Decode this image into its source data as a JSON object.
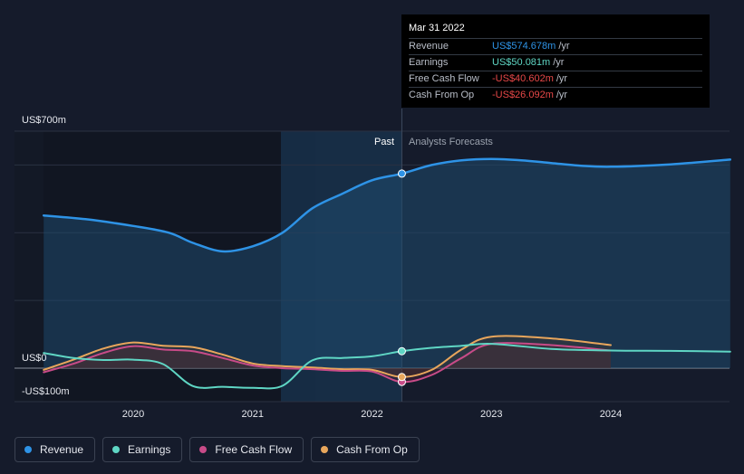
{
  "chart_data": {
    "type": "line",
    "y_axis": {
      "top_label": "US$700m",
      "zero_label": "US$0",
      "bottom_label": "-US$100m",
      "ylim": [
        -100,
        700
      ]
    },
    "x_ticks": [
      "2020",
      "2021",
      "2022",
      "2023",
      "2024"
    ],
    "sections": {
      "past_label": "Past",
      "forecast_label": "Analysts Forecasts"
    },
    "series": [
      {
        "name": "Revenue",
        "key": "revenue",
        "color": "#2e93e6",
        "area": true,
        "points": [
          [
            2019.25,
            451
          ],
          [
            2019.6,
            440
          ],
          [
            2020.0,
            420
          ],
          [
            2020.3,
            400
          ],
          [
            2020.5,
            370
          ],
          [
            2020.75,
            345
          ],
          [
            2021.0,
            360
          ],
          [
            2021.25,
            400
          ],
          [
            2021.5,
            472
          ],
          [
            2021.75,
            515
          ],
          [
            2022.0,
            555
          ],
          [
            2022.25,
            574.678
          ],
          [
            2022.5,
            600
          ],
          [
            2022.75,
            614
          ],
          [
            2023.0,
            618
          ],
          [
            2023.25,
            614
          ],
          [
            2023.5,
            606
          ],
          [
            2023.75,
            598
          ],
          [
            2024.0,
            595
          ],
          [
            2024.5,
            602
          ],
          [
            2025.0,
            616
          ]
        ]
      },
      {
        "name": "Earnings",
        "key": "earnings",
        "color": "#5fd6c4",
        "area": false,
        "points": [
          [
            2019.25,
            45
          ],
          [
            2019.5,
            30
          ],
          [
            2019.75,
            24
          ],
          [
            2020.0,
            25
          ],
          [
            2020.25,
            12
          ],
          [
            2020.5,
            -53
          ],
          [
            2020.75,
            -55
          ],
          [
            2021.0,
            -58
          ],
          [
            2021.25,
            -52
          ],
          [
            2021.5,
            23
          ],
          [
            2021.75,
            30
          ],
          [
            2022.0,
            35
          ],
          [
            2022.25,
            50.081
          ],
          [
            2022.5,
            60
          ],
          [
            2022.75,
            66
          ],
          [
            2023.0,
            72
          ],
          [
            2023.5,
            57
          ],
          [
            2024.0,
            52
          ],
          [
            2024.5,
            51
          ],
          [
            2025.0,
            49
          ]
        ]
      },
      {
        "name": "Free Cash Flow",
        "key": "fcf",
        "color": "#c84b88",
        "area": false,
        "points": [
          [
            2019.25,
            -12
          ],
          [
            2019.5,
            13
          ],
          [
            2019.75,
            45
          ],
          [
            2020.0,
            65
          ],
          [
            2020.25,
            55
          ],
          [
            2020.5,
            50
          ],
          [
            2020.75,
            30
          ],
          [
            2021.0,
            8
          ],
          [
            2021.25,
            0
          ],
          [
            2021.5,
            -3
          ],
          [
            2021.75,
            -8
          ],
          [
            2022.0,
            -10
          ],
          [
            2022.25,
            -40.602
          ],
          [
            2022.5,
            -20
          ],
          [
            2022.75,
            30
          ],
          [
            2023.0,
            72
          ],
          [
            2023.5,
            68
          ],
          [
            2024.0,
            52
          ]
        ]
      },
      {
        "name": "Cash From Op",
        "key": "cfo",
        "color": "#e8a65c",
        "area": false,
        "points": [
          [
            2019.25,
            -5
          ],
          [
            2019.5,
            25
          ],
          [
            2019.75,
            58
          ],
          [
            2020.0,
            76
          ],
          [
            2020.25,
            66
          ],
          [
            2020.5,
            62
          ],
          [
            2020.75,
            40
          ],
          [
            2021.0,
            14
          ],
          [
            2021.25,
            6
          ],
          [
            2021.5,
            2
          ],
          [
            2021.75,
            -3
          ],
          [
            2022.0,
            -5
          ],
          [
            2022.25,
            -26.092
          ],
          [
            2022.5,
            -5
          ],
          [
            2022.75,
            55
          ],
          [
            2023.0,
            93
          ],
          [
            2023.5,
            88
          ],
          [
            2024.0,
            68
          ]
        ]
      }
    ],
    "past_end_x": 2022.25,
    "legend_position": "bottom-left"
  },
  "tooltip": {
    "date": "Mar 31 2022",
    "rows": [
      {
        "label": "Revenue",
        "value": "US$574.678m",
        "unit": "/yr",
        "color": "#2e93e6"
      },
      {
        "label": "Earnings",
        "value": "US$50.081m",
        "unit": "/yr",
        "color": "#5fd6c4"
      },
      {
        "label": "Free Cash Flow",
        "value": "-US$40.602m",
        "unit": "/yr",
        "color": "#e84848"
      },
      {
        "label": "Cash From Op",
        "value": "-US$26.092m",
        "unit": "/yr",
        "color": "#e84848"
      }
    ]
  },
  "legend": [
    {
      "label": "Revenue",
      "color": "#2e93e6"
    },
    {
      "label": "Earnings",
      "color": "#5fd6c4"
    },
    {
      "label": "Free Cash Flow",
      "color": "#c84b88"
    },
    {
      "label": "Cash From Op",
      "color": "#e8a65c"
    }
  ]
}
